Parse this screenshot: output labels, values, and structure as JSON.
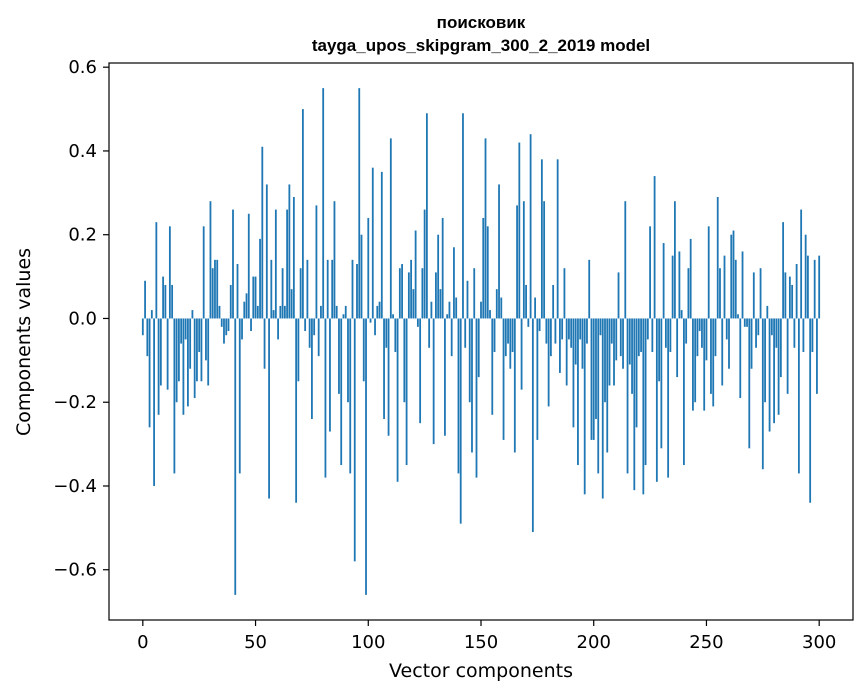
{
  "chart_data": {
    "type": "bar",
    "title": "поисковик",
    "subtitle": "tayga_upos_skipgram_300_2_2019 model",
    "xlabel": "Vector components",
    "ylabel": "Components values",
    "xlim": [
      -15,
      315
    ],
    "ylim": [
      -0.72,
      0.61
    ],
    "xticks": [
      0,
      50,
      100,
      150,
      200,
      250,
      300
    ],
    "yticks": [
      -0.6,
      -0.4,
      -0.2,
      0.0,
      0.2,
      0.4,
      0.6
    ],
    "ytick_labels": [
      "−0.6",
      "−0.4",
      "−0.2",
      "0.0",
      "0.2",
      "0.4",
      "0.6"
    ],
    "grid": false,
    "bar_color": "#1f77b4",
    "series": [
      {
        "values": [
          -0.04,
          0.09,
          -0.09,
          -0.26,
          0.02,
          -0.4,
          0.23,
          -0.23,
          -0.16,
          0.1,
          0.08,
          -0.17,
          0.22,
          0.08,
          -0.37,
          -0.2,
          -0.15,
          -0.06,
          -0.23,
          -0.05,
          -0.21,
          -0.12,
          0.02,
          -0.19,
          -0.15,
          -0.08,
          -0.15,
          0.22,
          -0.1,
          -0.16,
          0.28,
          0.12,
          0.14,
          0.14,
          0.03,
          -0.02,
          -0.06,
          -0.04,
          -0.03,
          0.08,
          0.26,
          -0.66,
          0.13,
          -0.37,
          -0.05,
          0.04,
          0.06,
          0.25,
          -0.03,
          0.1,
          0.1,
          0.03,
          0.19,
          0.41,
          -0.12,
          0.32,
          -0.43,
          0.14,
          0.02,
          0.26,
          -0.05,
          0.03,
          0.12,
          0.03,
          0.26,
          0.32,
          0.07,
          0.29,
          -0.44,
          -0.15,
          0.12,
          0.5,
          -0.03,
          0.14,
          -0.07,
          -0.24,
          -0.04,
          0.27,
          -0.09,
          0.03,
          0.55,
          -0.38,
          0.14,
          -0.27,
          0.14,
          0.28,
          0.03,
          -0.18,
          -0.35,
          0.01,
          0.03,
          -0.2,
          -0.37,
          0.14,
          -0.58,
          0.13,
          0.55,
          0.2,
          -0.15,
          -0.66,
          0.24,
          -0.01,
          0.36,
          -0.04,
          0.03,
          0.04,
          0.35,
          -0.24,
          -0.07,
          -0.28,
          0.43,
          0.01,
          -0.08,
          -0.39,
          0.12,
          0.13,
          -0.2,
          -0.35,
          0.11,
          0.14,
          0.07,
          0.21,
          -0.02,
          -0.25,
          0.12,
          0.26,
          0.49,
          -0.07,
          0.04,
          -0.3,
          0.11,
          0.2,
          0.07,
          0.24,
          -0.28,
          0.01,
          0.04,
          -0.09,
          0.17,
          0.05,
          -0.37,
          -0.49,
          0.49,
          -0.07,
          0.09,
          -0.2,
          -0.32,
          0.12,
          -0.38,
          -0.14,
          0.04,
          0.24,
          0.43,
          0.22,
          0.02,
          -0.23,
          -0.08,
          0.07,
          0.32,
          0.05,
          -0.29,
          -0.09,
          -0.06,
          -0.12,
          -0.08,
          -0.32,
          0.27,
          0.42,
          -0.17,
          0.28,
          0.08,
          -0.02,
          0.44,
          -0.51,
          0.05,
          -0.29,
          -0.03,
          0.38,
          0.28,
          -0.06,
          -0.21,
          -0.09,
          0.08,
          -0.06,
          0.38,
          -0.13,
          -0.05,
          0.12,
          -0.16,
          -0.05,
          -0.07,
          -0.26,
          -0.11,
          -0.35,
          -0.05,
          -0.12,
          -0.42,
          -0.06,
          0.14,
          -0.29,
          -0.29,
          -0.24,
          -0.37,
          -0.04,
          -0.43,
          -0.2,
          -0.32,
          -0.16,
          -0.06,
          -0.16,
          -0.1,
          0.11,
          -0.09,
          -0.12,
          0.28,
          -0.37,
          -0.11,
          -0.18,
          -0.41,
          -0.26,
          -0.09,
          -0.08,
          -0.42,
          -0.35,
          -0.05,
          0.22,
          -0.08,
          0.34,
          -0.39,
          -0.15,
          -0.31,
          0.18,
          -0.07,
          -0.38,
          -0.08,
          0.15,
          0.28,
          -0.14,
          0.16,
          0.02,
          -0.35,
          -0.06,
          0.12,
          0.19,
          -0.22,
          -0.2,
          -0.09,
          -0.03,
          -0.07,
          -0.22,
          -0.1,
          0.22,
          -0.18,
          -0.21,
          -0.09,
          0.29,
          0.12,
          -0.16,
          0.15,
          -0.05,
          -0.12,
          0.2,
          0.21,
          0.14,
          0.01,
          -0.19,
          0.16,
          -0.02,
          -0.02,
          -0.31,
          -0.12,
          0.11,
          -0.07,
          -0.04,
          0.12,
          -0.36,
          -0.2,
          0.03,
          -0.27,
          -0.04,
          -0.25,
          -0.07,
          -0.23,
          -0.14,
          0.23,
          0.11,
          -0.18,
          0.1,
          0.08,
          -0.07,
          0.13,
          -0.37,
          0.26,
          -0.08,
          0.2,
          0.15,
          -0.44,
          -0.08,
          0.14,
          -0.18,
          0.15
        ]
      }
    ]
  }
}
